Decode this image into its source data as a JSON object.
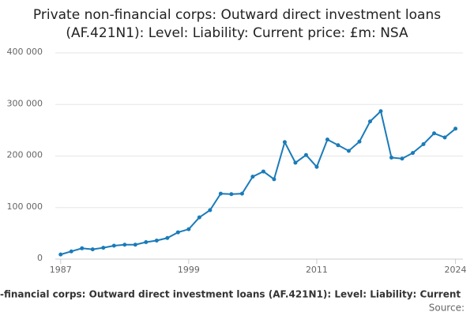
{
  "chart_data": {
    "type": "line",
    "title": [
      "Private non-financial corps: Outward direct investment loans",
      "(AF.421N1): Level: Liability: Current price: £m: NSA"
    ],
    "x": [
      1987,
      1988,
      1989,
      1990,
      1991,
      1992,
      1993,
      1994,
      1995,
      1996,
      1997,
      1998,
      1999,
      2000,
      2001,
      2002,
      2003,
      2004,
      2005,
      2006,
      2007,
      2008,
      2009,
      2010,
      2011,
      2012,
      2013,
      2014,
      2015,
      2016,
      2017,
      2018,
      2019,
      2020,
      2021,
      2022,
      2023,
      2024
    ],
    "series": [
      {
        "name": "Private non-financial corps: Outward direct investment loans (AF.421N1): Level: Liability: Current price: £m: NSA",
        "color": "#1a7bb9",
        "values": [
          9000,
          15000,
          21000,
          19000,
          22000,
          26000,
          28000,
          28000,
          33000,
          36000,
          41000,
          52000,
          58000,
          81000,
          95000,
          127000,
          126000,
          127000,
          160000,
          170000,
          155000,
          227000,
          187000,
          202000,
          179000,
          232000,
          221000,
          210000,
          228000,
          267000,
          287000,
          197000,
          195000,
          206000,
          223000,
          244000,
          236000,
          253000
        ]
      }
    ],
    "xlim": [
      1986.5,
      2024.7
    ],
    "xticks": [
      1987,
      1999,
      2011,
      2024
    ],
    "ylim": [
      0,
      400000
    ],
    "yticks": [
      {
        "value": 0,
        "label": "0"
      },
      {
        "value": 100000,
        "label": "100 000"
      },
      {
        "value": 200000,
        "label": "200 000"
      },
      {
        "value": 300000,
        "label": "300 000"
      },
      {
        "value": 400000,
        "label": "400 000"
      }
    ],
    "grid": true,
    "caption": "-financial corps: Outward direct investment loans (AF.421N1): Level: Liability: Current",
    "source": "Source:"
  }
}
